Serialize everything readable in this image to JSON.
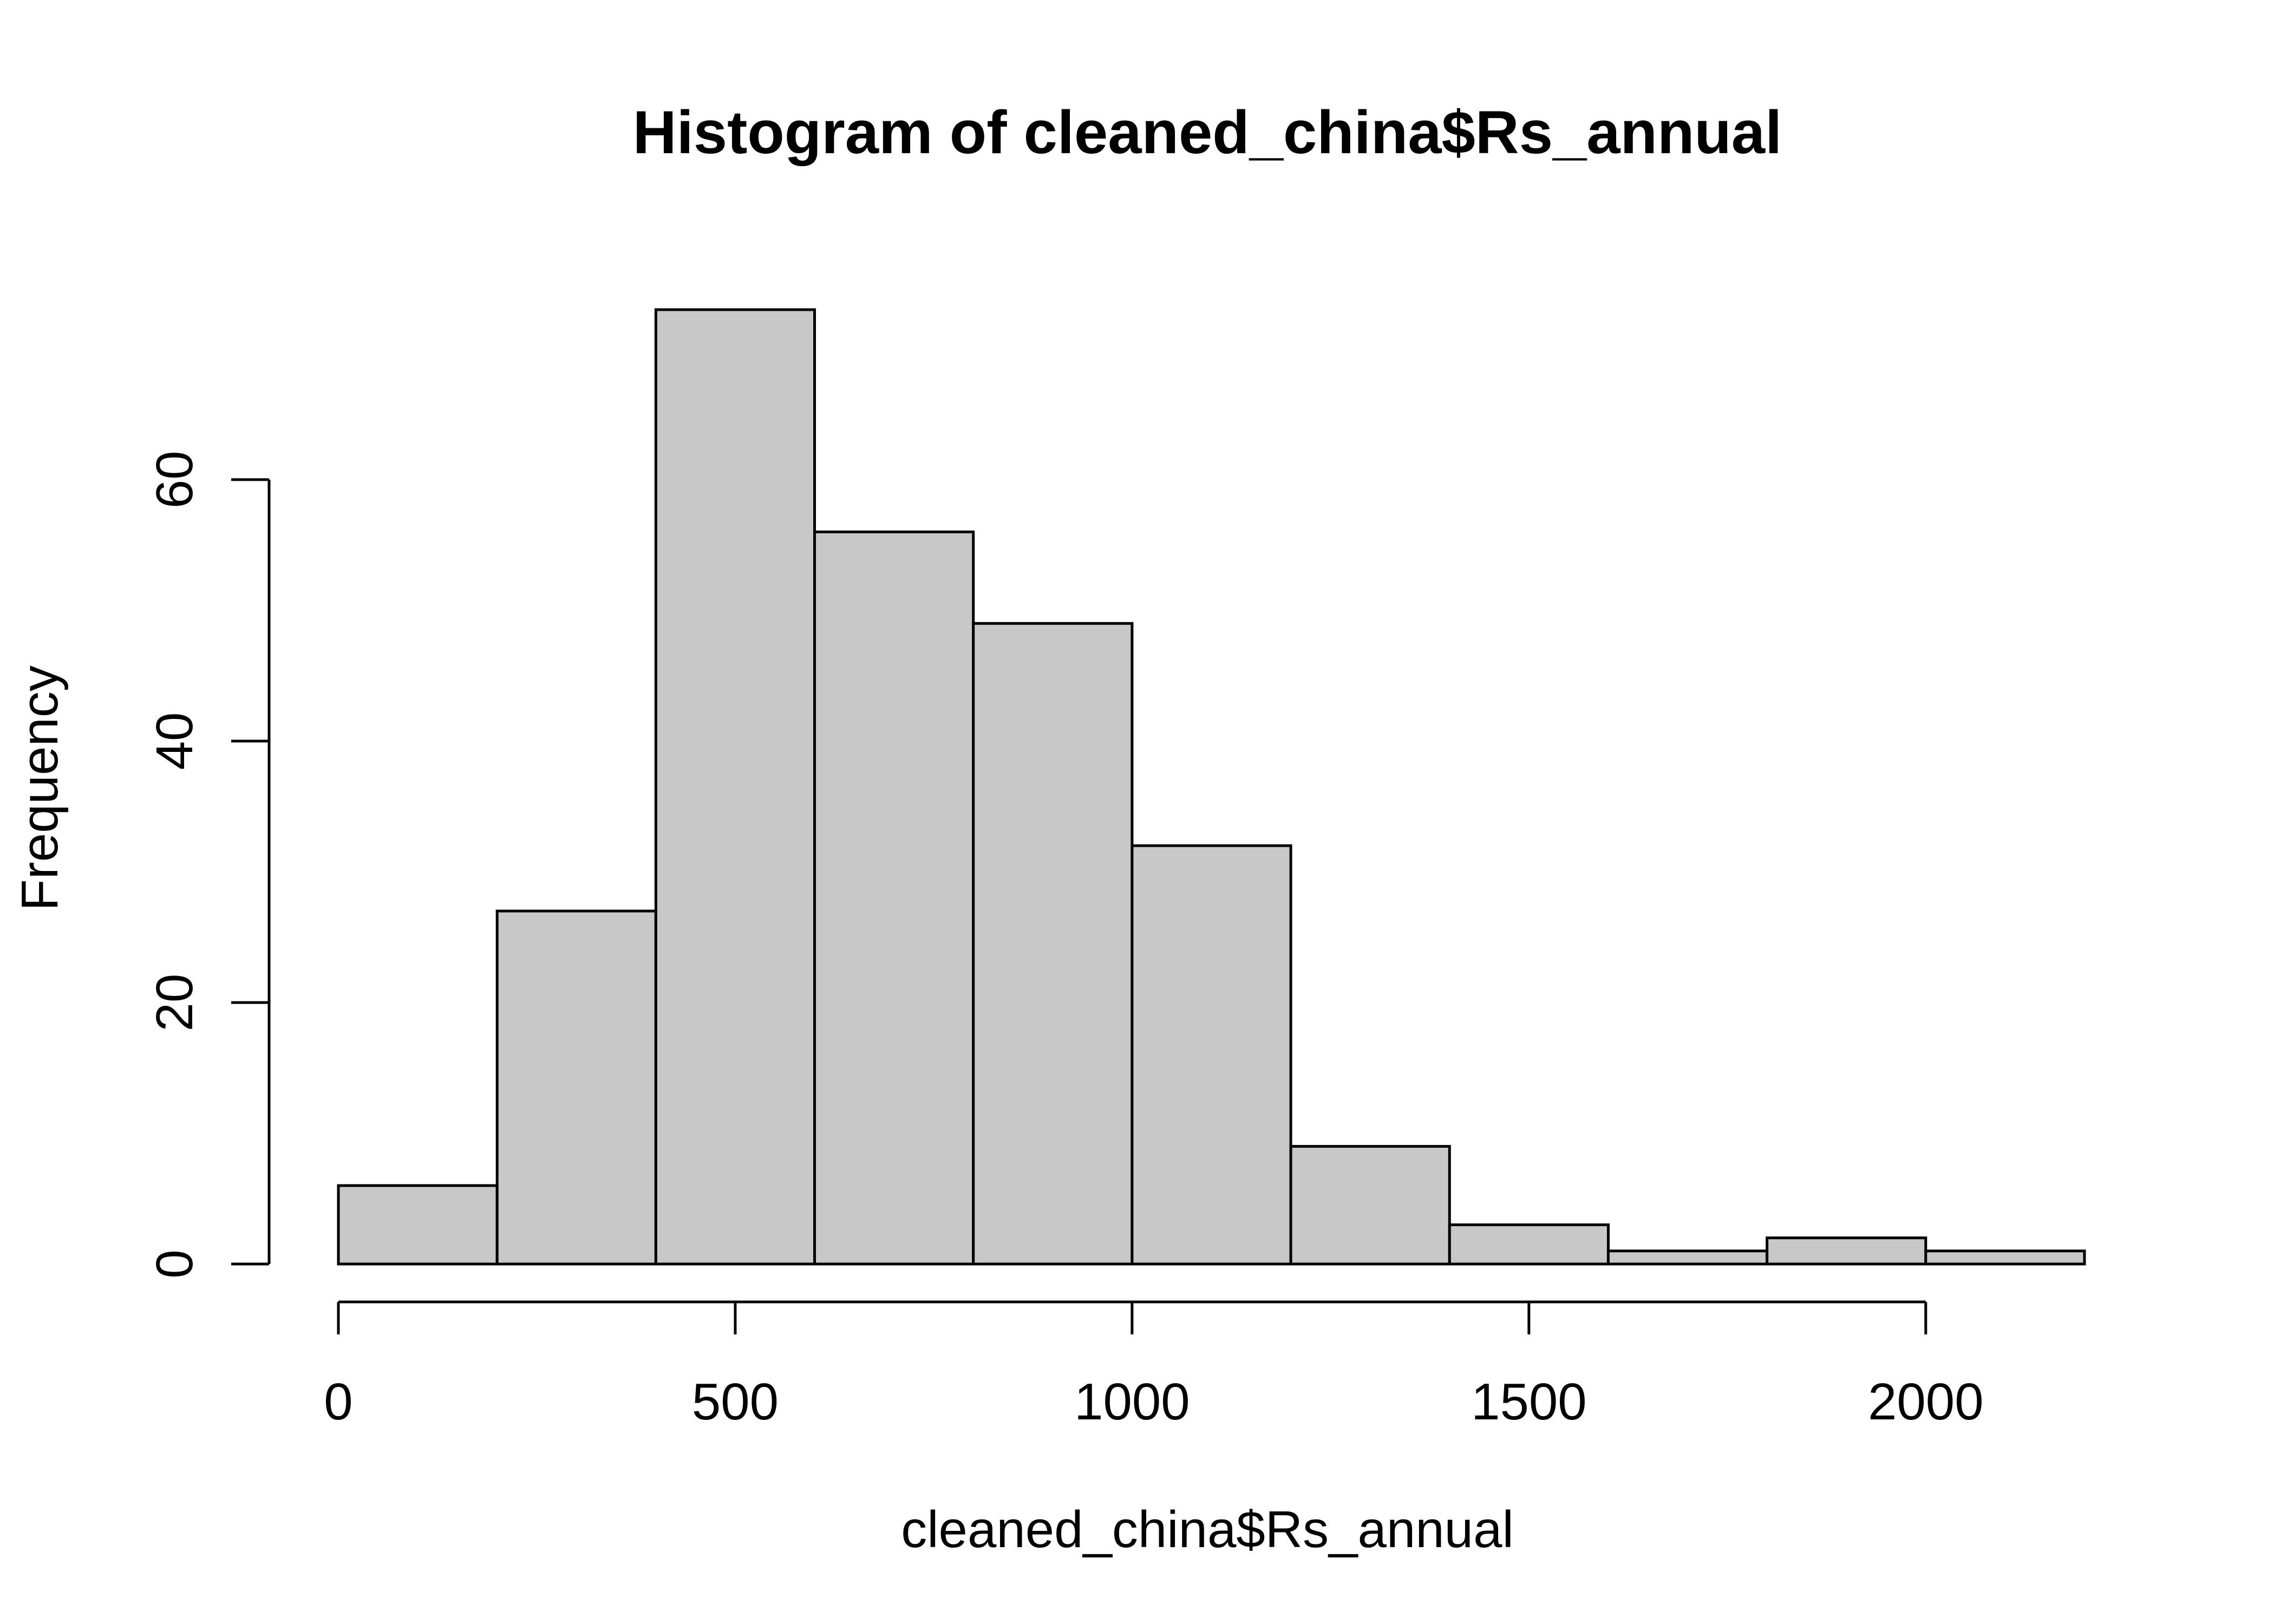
{
  "chart_data": {
    "type": "bar",
    "subtype": "histogram",
    "title": "Histogram of cleaned_china$Rs_annual",
    "xlabel": "cleaned_china$Rs_annual",
    "ylabel": "Frequency",
    "bins": [
      {
        "x0": 0,
        "x1": 200,
        "count": 6
      },
      {
        "x0": 200,
        "x1": 400,
        "count": 27
      },
      {
        "x0": 400,
        "x1": 600,
        "count": 73
      },
      {
        "x0": 600,
        "x1": 800,
        "count": 56
      },
      {
        "x0": 800,
        "x1": 1000,
        "count": 49
      },
      {
        "x0": 1000,
        "x1": 1200,
        "count": 32
      },
      {
        "x0": 1200,
        "x1": 1400,
        "count": 9
      },
      {
        "x0": 1400,
        "x1": 1600,
        "count": 3
      },
      {
        "x0": 1600,
        "x1": 1800,
        "count": 1
      },
      {
        "x0": 1800,
        "x1": 2000,
        "count": 2
      },
      {
        "x0": 2000,
        "x1": 2200,
        "count": 1
      }
    ],
    "x_ticks": [
      0,
      500,
      1000,
      1500,
      2000
    ],
    "y_ticks": [
      0,
      20,
      40,
      60
    ],
    "xlim": [
      0,
      2200
    ],
    "ylim": [
      0,
      73
    ],
    "grid": false,
    "bar_color": "#c8c8c8",
    "edge_color": "#000000"
  }
}
